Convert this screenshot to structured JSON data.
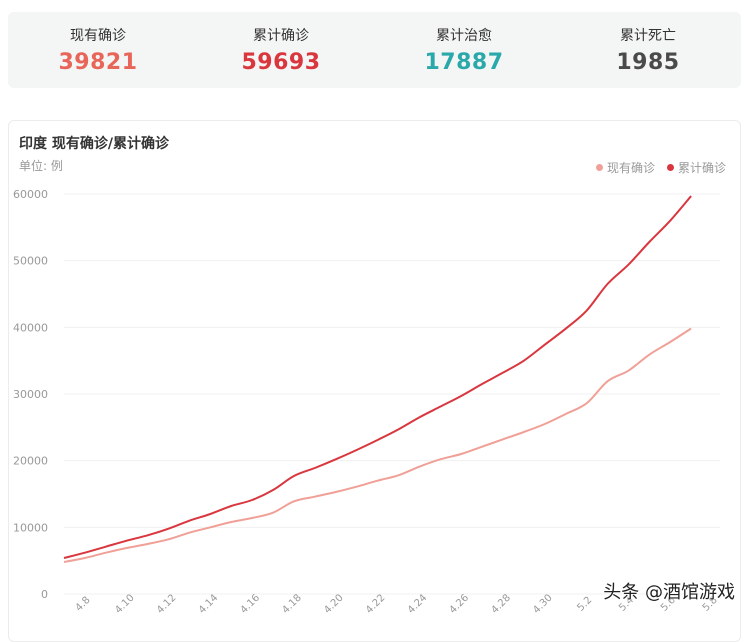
{
  "stats": [
    {
      "label": "现有确诊",
      "value": "39821",
      "color": "#e8655a"
    },
    {
      "label": "累计确诊",
      "value": "59693",
      "color": "#d9363e"
    },
    {
      "label": "累计治愈",
      "value": "17887",
      "color": "#2aa8aa"
    },
    {
      "label": "累计死亡",
      "value": "1985",
      "color": "#4a4a4a"
    }
  ],
  "chart": {
    "title": "印度 现有确诊/累计确诊",
    "unit": "单位: 例"
  },
  "watermark": "头条 @酒馆游戏",
  "chart_data": {
    "type": "line",
    "x": [
      "4.7",
      "4.8",
      "4.9",
      "4.10",
      "4.11",
      "4.12",
      "4.13",
      "4.14",
      "4.15",
      "4.16",
      "4.17",
      "4.18",
      "4.19",
      "4.20",
      "4.21",
      "4.22",
      "4.23",
      "4.24",
      "4.25",
      "4.26",
      "4.27",
      "4.28",
      "4.29",
      "4.30",
      "5.1",
      "5.2",
      "5.3",
      "5.4",
      "5.5",
      "5.6",
      "5.7",
      "5.8"
    ],
    "xticks": [
      "4.8",
      "4.10",
      "4.12",
      "4.14",
      "4.16",
      "4.18",
      "4.20",
      "4.22",
      "4.24",
      "4.26",
      "4.28",
      "4.30",
      "5.2",
      "5.4",
      "5.6",
      "5.8"
    ],
    "yticks": [
      0,
      10000,
      20000,
      30000,
      40000,
      50000,
      60000
    ],
    "ylim": [
      0,
      60000
    ],
    "grid": true,
    "legend": "top-right",
    "series": [
      {
        "name": "现有确诊",
        "color": "#f0a096",
        "values": [
          4800,
          5400,
          6200,
          6900,
          7500,
          8200,
          9200,
          10000,
          10800,
          11400,
          12200,
          13900,
          14600,
          15300,
          16100,
          17000,
          17800,
          19100,
          20200,
          21000,
          22100,
          23200,
          24300,
          25500,
          27000,
          28600,
          31900,
          33500,
          35900,
          37800,
          39821,
          39821
        ]
      },
      {
        "name": "累计确诊",
        "color": "#d9363e",
        "values": [
          5400,
          6200,
          7100,
          8000,
          8800,
          9800,
          11000,
          12000,
          13200,
          14100,
          15600,
          17700,
          18900,
          20200,
          21600,
          23100,
          24700,
          26500,
          28100,
          29700,
          31500,
          33200,
          35000,
          37400,
          39800,
          42500,
          46500,
          49400,
          52800,
          56000,
          59693,
          59693
        ]
      }
    ]
  }
}
